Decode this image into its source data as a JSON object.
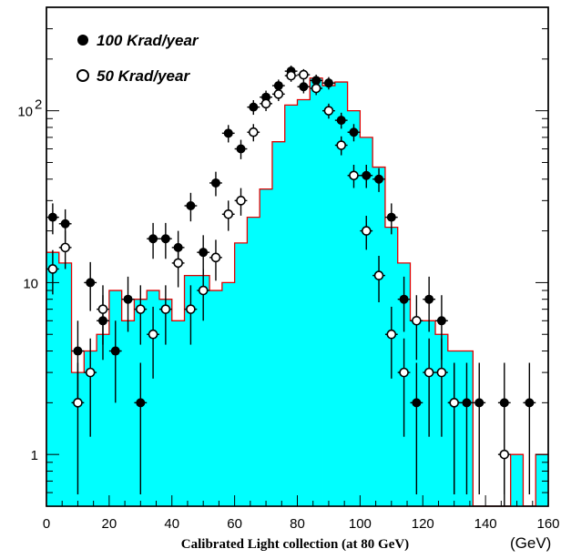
{
  "chart_data": {
    "type": "histogram",
    "x_axis": {
      "range": [
        0,
        160
      ],
      "ticks": [
        "0",
        "20",
        "40",
        "60",
        "80",
        "100",
        "120",
        "140",
        "160"
      ],
      "label": "Calibrated Light collection (at 80 GeV)",
      "unit": "(GeV)"
    },
    "y_axis": {
      "scale": "log",
      "range": [
        0.5,
        400
      ],
      "ticks": [
        {
          "value": 1,
          "label": "1"
        },
        {
          "value": 10,
          "label": "10"
        },
        {
          "value": 100,
          "label": "10",
          "sup": "2"
        }
      ]
    },
    "histogram": {
      "bin_width": 4,
      "x_start": 0,
      "fill_color": "#00ffff",
      "line_color": "#e00000",
      "values": [
        15,
        13,
        3,
        4,
        5,
        9,
        6,
        8,
        9,
        8,
        6,
        11,
        11,
        9,
        10,
        17,
        24,
        35,
        66,
        108,
        116,
        155,
        140,
        147,
        100,
        70,
        47,
        21,
        13,
        6,
        6,
        5,
        4,
        4,
        0,
        0,
        0,
        1,
        0,
        1
      ]
    },
    "series": [
      {
        "name": "100 Krad/year",
        "marker": "filled-circle",
        "points": [
          {
            "x": 2,
            "y": 24
          },
          {
            "x": 6,
            "y": 22
          },
          {
            "x": 10,
            "y": 4
          },
          {
            "x": 14,
            "y": 10
          },
          {
            "x": 18,
            "y": 6
          },
          {
            "x": 22,
            "y": 4
          },
          {
            "x": 26,
            "y": 8
          },
          {
            "x": 30,
            "y": 2
          },
          {
            "x": 34,
            "y": 18
          },
          {
            "x": 38,
            "y": 18
          },
          {
            "x": 42,
            "y": 16
          },
          {
            "x": 46,
            "y": 28
          },
          {
            "x": 50,
            "y": 15
          },
          {
            "x": 54,
            "y": 38
          },
          {
            "x": 58,
            "y": 74
          },
          {
            "x": 62,
            "y": 60
          },
          {
            "x": 66,
            "y": 105
          },
          {
            "x": 70,
            "y": 120
          },
          {
            "x": 74,
            "y": 140
          },
          {
            "x": 78,
            "y": 170
          },
          {
            "x": 82,
            "y": 138
          },
          {
            "x": 86,
            "y": 150
          },
          {
            "x": 90,
            "y": 145
          },
          {
            "x": 94,
            "y": 88
          },
          {
            "x": 98,
            "y": 75
          },
          {
            "x": 102,
            "y": 42
          },
          {
            "x": 106,
            "y": 40
          },
          {
            "x": 110,
            "y": 24
          },
          {
            "x": 114,
            "y": 8
          },
          {
            "x": 118,
            "y": 2
          },
          {
            "x": 122,
            "y": 8
          },
          {
            "x": 126,
            "y": 6
          },
          {
            "x": 130,
            "y": 2
          },
          {
            "x": 134,
            "y": 2
          },
          {
            "x": 138,
            "y": 2
          },
          {
            "x": 146,
            "y": 2
          },
          {
            "x": 154,
            "y": 2
          }
        ]
      },
      {
        "name": "50 Krad/year",
        "marker": "open-circle",
        "points": [
          {
            "x": 2,
            "y": 12
          },
          {
            "x": 6,
            "y": 16
          },
          {
            "x": 10,
            "y": 2
          },
          {
            "x": 14,
            "y": 3
          },
          {
            "x": 18,
            "y": 7
          },
          {
            "x": 30,
            "y": 7
          },
          {
            "x": 34,
            "y": 5
          },
          {
            "x": 38,
            "y": 7
          },
          {
            "x": 42,
            "y": 13
          },
          {
            "x": 46,
            "y": 7
          },
          {
            "x": 50,
            "y": 9
          },
          {
            "x": 54,
            "y": 14
          },
          {
            "x": 58,
            "y": 25
          },
          {
            "x": 62,
            "y": 30
          },
          {
            "x": 66,
            "y": 75
          },
          {
            "x": 70,
            "y": 110
          },
          {
            "x": 74,
            "y": 125
          },
          {
            "x": 78,
            "y": 160
          },
          {
            "x": 82,
            "y": 162
          },
          {
            "x": 86,
            "y": 135
          },
          {
            "x": 90,
            "y": 100
          },
          {
            "x": 94,
            "y": 63
          },
          {
            "x": 98,
            "y": 42
          },
          {
            "x": 102,
            "y": 20
          },
          {
            "x": 106,
            "y": 11
          },
          {
            "x": 110,
            "y": 5
          },
          {
            "x": 114,
            "y": 3
          },
          {
            "x": 118,
            "y": 6
          },
          {
            "x": 122,
            "y": 3
          },
          {
            "x": 126,
            "y": 3
          },
          {
            "x": 130,
            "y": 2
          },
          {
            "x": 146,
            "y": 1
          }
        ]
      }
    ],
    "legend": {
      "position": "top-left",
      "entries": [
        {
          "marker": "filled-circle",
          "label": "100 Krad/year"
        },
        {
          "marker": "open-circle",
          "label": "50 Krad/year"
        }
      ]
    }
  }
}
